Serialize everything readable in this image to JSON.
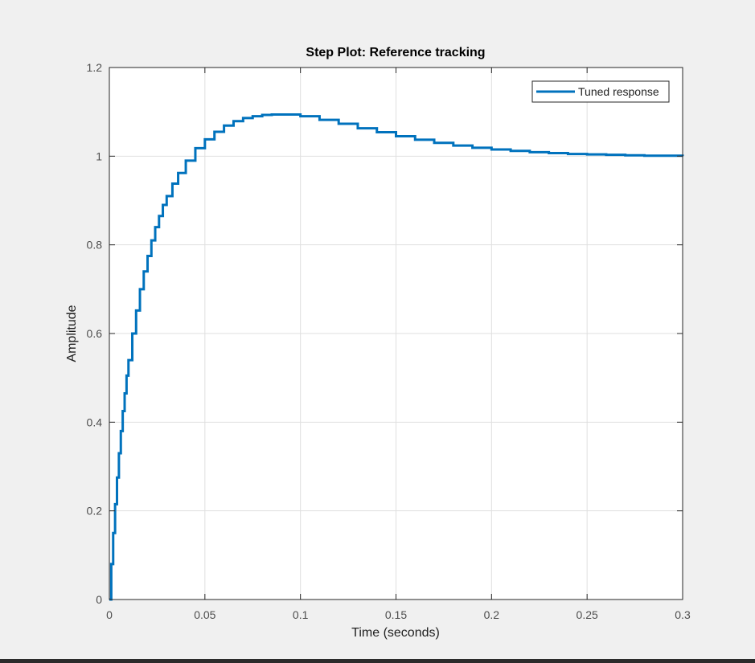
{
  "chart_data": {
    "type": "line",
    "title": "Step Plot: Reference tracking",
    "xlabel": "Time (seconds)",
    "ylabel": "Amplitude",
    "xlim": [
      0,
      0.3
    ],
    "ylim": [
      0,
      1.2
    ],
    "xticks": [
      0,
      0.05,
      0.1,
      0.15,
      0.2,
      0.25,
      0.3
    ],
    "xtick_labels": [
      "0",
      "0.05",
      "0.1",
      "0.15",
      "0.2",
      "0.25",
      "0.3"
    ],
    "yticks": [
      0,
      0.2,
      0.4,
      0.6,
      0.8,
      1,
      1.2
    ],
    "ytick_labels": [
      "0",
      "0.2",
      "0.4",
      "0.6",
      "0.8",
      "1",
      "1.2"
    ],
    "grid": true,
    "legend_position": "top-right",
    "series": [
      {
        "name": "Tuned response",
        "color": "#0072bd",
        "style": "step",
        "x": [
          0,
          0.001,
          0.002,
          0.003,
          0.004,
          0.005,
          0.006,
          0.007,
          0.008,
          0.009,
          0.01,
          0.012,
          0.014,
          0.016,
          0.018,
          0.02,
          0.022,
          0.024,
          0.026,
          0.028,
          0.03,
          0.033,
          0.036,
          0.04,
          0.045,
          0.05,
          0.055,
          0.06,
          0.065,
          0.07,
          0.075,
          0.08,
          0.085,
          0.09,
          0.1,
          0.11,
          0.12,
          0.13,
          0.14,
          0.15,
          0.16,
          0.17,
          0.18,
          0.19,
          0.2,
          0.21,
          0.22,
          0.23,
          0.24,
          0.25,
          0.26,
          0.27,
          0.28,
          0.29,
          0.3
        ],
        "y": [
          0,
          0.08,
          0.15,
          0.215,
          0.275,
          0.33,
          0.38,
          0.425,
          0.465,
          0.505,
          0.54,
          0.6,
          0.652,
          0.7,
          0.74,
          0.775,
          0.81,
          0.84,
          0.865,
          0.89,
          0.91,
          0.938,
          0.962,
          0.99,
          1.018,
          1.038,
          1.055,
          1.069,
          1.079,
          1.086,
          1.09,
          1.093,
          1.094,
          1.094,
          1.09,
          1.082,
          1.073,
          1.063,
          1.054,
          1.045,
          1.037,
          1.03,
          1.024,
          1.019,
          1.015,
          1.012,
          1.009,
          1.007,
          1.005,
          1.004,
          1.003,
          1.002,
          1.001,
          1.001,
          1.0
        ]
      }
    ]
  }
}
